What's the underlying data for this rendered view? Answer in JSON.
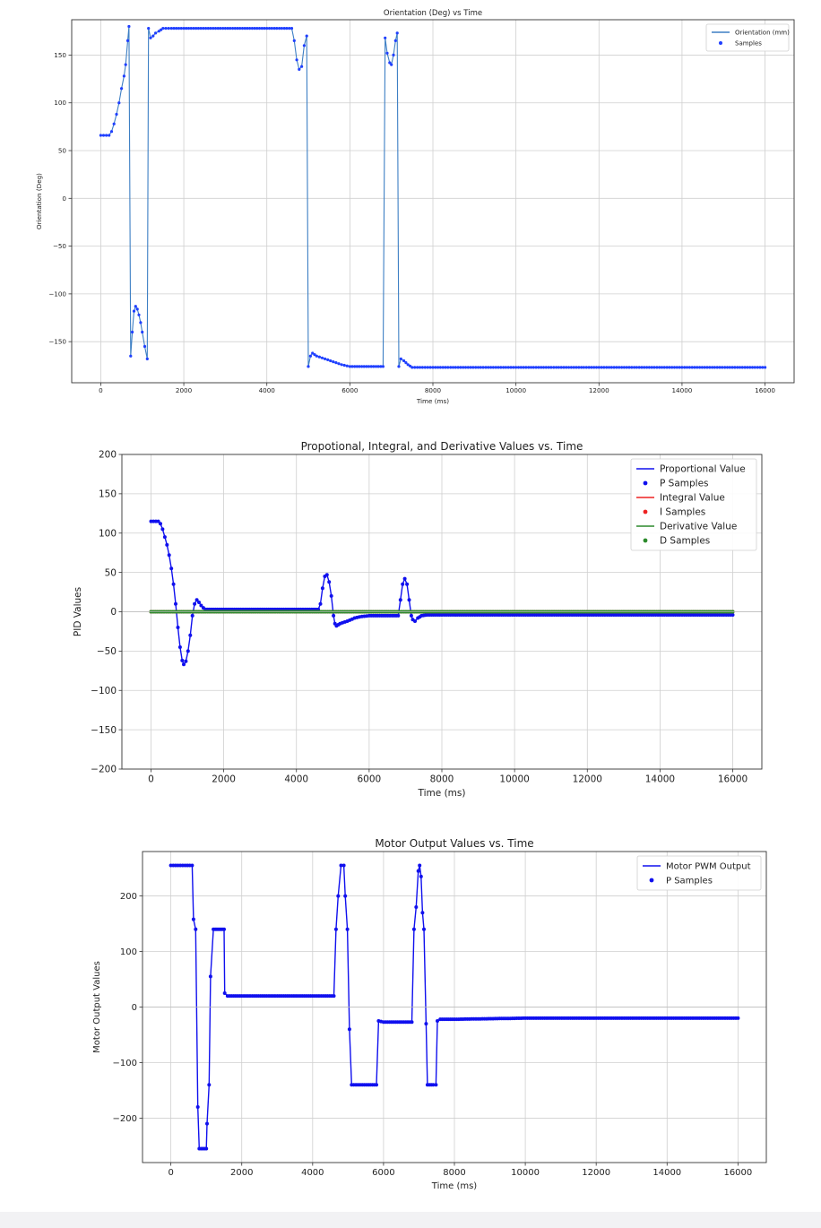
{
  "colors": {
    "orientation": "#3d7fc4",
    "samples": "#1f3fff",
    "p": "#1010ee",
    "i": "#ee2222",
    "d": "#2b8a2b",
    "grid": "#cfcfcf"
  },
  "chart_data": [
    {
      "type": "line",
      "title": "Orientation (Deg) vs Time",
      "xlabel": "Time (ms)",
      "ylabel": "Orientation (Deg)",
      "xlim": [
        -700,
        16700
      ],
      "ylim": [
        -193,
        187
      ],
      "xticks": [
        0,
        2000,
        4000,
        6000,
        8000,
        10000,
        12000,
        14000,
        16000
      ],
      "yticks": [
        -150,
        -100,
        -50,
        0,
        50,
        100,
        150
      ],
      "grid": true,
      "legend": "top-right",
      "series": [
        {
          "name": "Orientation (mm)",
          "style": "line",
          "color": "#3d7fc4",
          "points": [
            [
              0,
              66
            ],
            [
              200,
              66
            ],
            [
              260,
              70
            ],
            [
              320,
              78
            ],
            [
              380,
              88
            ],
            [
              440,
              100
            ],
            [
              500,
              115
            ],
            [
              560,
              128
            ],
            [
              600,
              140
            ],
            [
              650,
              165
            ],
            [
              680,
              180
            ],
            [
              720,
              -165
            ],
            [
              760,
              -140
            ],
            [
              800,
              -118
            ],
            [
              840,
              -113
            ],
            [
              880,
              -116
            ],
            [
              920,
              -122
            ],
            [
              960,
              -130
            ],
            [
              1000,
              -140
            ],
            [
              1060,
              -155
            ],
            [
              1120,
              -168
            ],
            [
              1150,
              178
            ],
            [
              1200,
              168
            ],
            [
              1260,
              170
            ],
            [
              1320,
              173
            ],
            [
              1400,
              175
            ],
            [
              1500,
              178
            ],
            [
              1700,
              178
            ],
            [
              2000,
              178
            ],
            [
              3000,
              178
            ],
            [
              4000,
              178
            ],
            [
              4600,
              178
            ],
            [
              4660,
              165
            ],
            [
              4720,
              145
            ],
            [
              4780,
              135
            ],
            [
              4840,
              138
            ],
            [
              4900,
              160
            ],
            [
              4960,
              170
            ],
            [
              5000,
              -176
            ],
            [
              5050,
              -165
            ],
            [
              5100,
              -162
            ],
            [
              5200,
              -165
            ],
            [
              5400,
              -168
            ],
            [
              5600,
              -171
            ],
            [
              5800,
              -174
            ],
            [
              6000,
              -176
            ],
            [
              6400,
              -176
            ],
            [
              6800,
              -176
            ],
            [
              6850,
              168
            ],
            [
              6900,
              152
            ],
            [
              6960,
              142
            ],
            [
              7000,
              140
            ],
            [
              7050,
              150
            ],
            [
              7100,
              165
            ],
            [
              7140,
              173
            ],
            [
              7180,
              -176
            ],
            [
              7230,
              -168
            ],
            [
              7300,
              -170
            ],
            [
              7400,
              -174
            ],
            [
              7500,
              -177
            ],
            [
              8000,
              -177
            ],
            [
              10000,
              -177
            ],
            [
              12000,
              -177
            ],
            [
              14000,
              -177
            ],
            [
              16000,
              -177
            ]
          ]
        },
        {
          "name": "Samples",
          "style": "scatter",
          "color": "#1f3fff"
        }
      ]
    },
    {
      "type": "line",
      "title": "Propotional, Integral, and Derivative Values vs. Time",
      "xlabel": "Time (ms)",
      "ylabel": "PID Values",
      "xlim": [
        -800,
        16800
      ],
      "ylim": [
        -200,
        200
      ],
      "xticks": [
        0,
        2000,
        4000,
        6000,
        8000,
        10000,
        12000,
        14000,
        16000
      ],
      "yticks": [
        -200,
        -150,
        -100,
        -50,
        0,
        50,
        100,
        150,
        200
      ],
      "grid": true,
      "legend": "top-right",
      "series": [
        {
          "name": "Proportional Value",
          "style": "line",
          "color": "#1010ee",
          "points": [
            [
              0,
              115
            ],
            [
              200,
              115
            ],
            [
              260,
              112
            ],
            [
              320,
              105
            ],
            [
              380,
              95
            ],
            [
              440,
              85
            ],
            [
              500,
              72
            ],
            [
              560,
              55
            ],
            [
              620,
              35
            ],
            [
              680,
              10
            ],
            [
              740,
              -20
            ],
            [
              800,
              -45
            ],
            [
              860,
              -62
            ],
            [
              900,
              -67
            ],
            [
              960,
              -63
            ],
            [
              1020,
              -50
            ],
            [
              1080,
              -30
            ],
            [
              1140,
              -5
            ],
            [
              1200,
              10
            ],
            [
              1260,
              15
            ],
            [
              1320,
              12
            ],
            [
              1380,
              8
            ],
            [
              1440,
              5
            ],
            [
              1500,
              3
            ],
            [
              1600,
              3
            ],
            [
              2000,
              3
            ],
            [
              3000,
              3
            ],
            [
              4000,
              3
            ],
            [
              4600,
              3
            ],
            [
              4660,
              10
            ],
            [
              4720,
              30
            ],
            [
              4780,
              45
            ],
            [
              4840,
              47
            ],
            [
              4900,
              38
            ],
            [
              4960,
              20
            ],
            [
              5020,
              -5
            ],
            [
              5060,
              -15
            ],
            [
              5100,
              -18
            ],
            [
              5200,
              -15
            ],
            [
              5400,
              -12
            ],
            [
              5600,
              -8
            ],
            [
              5800,
              -6
            ],
            [
              6000,
              -5
            ],
            [
              6400,
              -5
            ],
            [
              6800,
              -5
            ],
            [
              6860,
              15
            ],
            [
              6920,
              35
            ],
            [
              6980,
              42
            ],
            [
              7040,
              35
            ],
            [
              7100,
              15
            ],
            [
              7160,
              -5
            ],
            [
              7200,
              -10
            ],
            [
              7260,
              -12
            ],
            [
              7340,
              -8
            ],
            [
              7440,
              -5
            ],
            [
              7600,
              -4
            ],
            [
              8000,
              -4
            ],
            [
              10000,
              -4
            ],
            [
              12000,
              -4
            ],
            [
              14000,
              -4
            ],
            [
              16000,
              -4
            ]
          ]
        },
        {
          "name": "P Samples",
          "style": "scatter",
          "color": "#1010ee"
        },
        {
          "name": "Integral Value",
          "style": "line",
          "color": "#ee2222",
          "points": [
            [
              0,
              0
            ],
            [
              16000,
              0
            ]
          ]
        },
        {
          "name": "I Samples",
          "style": "scatter",
          "color": "#ee2222"
        },
        {
          "name": "Derivative Value",
          "style": "line",
          "color": "#2b8a2b",
          "points": [
            [
              0,
              0
            ],
            [
              16000,
              0
            ]
          ]
        },
        {
          "name": "D Samples",
          "style": "scatter",
          "color": "#2b8a2b"
        }
      ]
    },
    {
      "type": "line",
      "title": "Motor Output Values vs. Time",
      "xlabel": "Time (ms)",
      "ylabel": "Motor Output Values",
      "xlim": [
        -800,
        16800
      ],
      "ylim": [
        -280,
        280
      ],
      "xticks": [
        0,
        2000,
        4000,
        6000,
        8000,
        10000,
        12000,
        14000,
        16000
      ],
      "yticks": [
        -200,
        -100,
        0,
        100,
        200
      ],
      "grid": true,
      "legend": "top-right",
      "series": [
        {
          "name": "Motor PWM Output",
          "style": "line",
          "color": "#1010ee",
          "points": [
            [
              0,
              255
            ],
            [
              200,
              255
            ],
            [
              400,
              255
            ],
            [
              600,
              255
            ],
            [
              640,
              158
            ],
            [
              700,
              140
            ],
            [
              760,
              -180
            ],
            [
              800,
              -255
            ],
            [
              900,
              -255
            ],
            [
              1000,
              -255
            ],
            [
              1020,
              -210
            ],
            [
              1080,
              -140
            ],
            [
              1120,
              55
            ],
            [
              1200,
              140
            ],
            [
              1300,
              140
            ],
            [
              1400,
              140
            ],
            [
              1500,
              140
            ],
            [
              1520,
              25
            ],
            [
              1600,
              20
            ],
            [
              2000,
              20
            ],
            [
              3000,
              20
            ],
            [
              4000,
              20
            ],
            [
              4600,
              20
            ],
            [
              4660,
              140
            ],
            [
              4720,
              200
            ],
            [
              4800,
              255
            ],
            [
              4880,
              255
            ],
            [
              4920,
              200
            ],
            [
              4980,
              140
            ],
            [
              5040,
              -40
            ],
            [
              5100,
              -140
            ],
            [
              5400,
              -140
            ],
            [
              5800,
              -140
            ],
            [
              5860,
              -25
            ],
            [
              6000,
              -27
            ],
            [
              6400,
              -27
            ],
            [
              6800,
              -27
            ],
            [
              6860,
              140
            ],
            [
              6920,
              180
            ],
            [
              6980,
              245
            ],
            [
              7020,
              255
            ],
            [
              7060,
              235
            ],
            [
              7100,
              170
            ],
            [
              7140,
              140
            ],
            [
              7200,
              -30
            ],
            [
              7240,
              -140
            ],
            [
              7400,
              -140
            ],
            [
              7480,
              -140
            ],
            [
              7520,
              -25
            ],
            [
              7600,
              -22
            ],
            [
              8000,
              -22
            ],
            [
              10000,
              -20
            ],
            [
              12000,
              -20
            ],
            [
              14000,
              -20
            ],
            [
              16000,
              -20
            ]
          ]
        },
        {
          "name": "P Samples",
          "style": "scatter",
          "color": "#1010ee"
        }
      ]
    }
  ]
}
